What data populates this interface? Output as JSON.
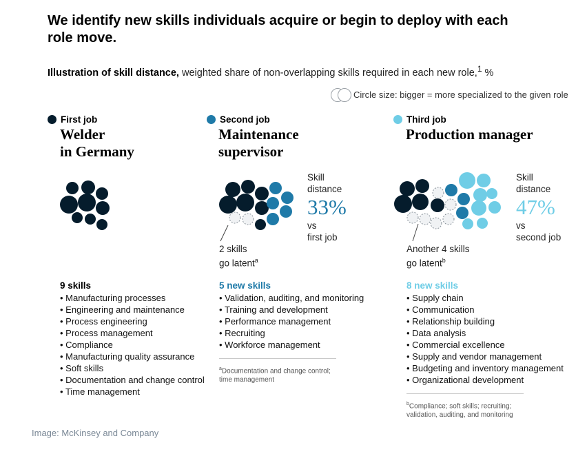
{
  "title": "We identify new skills individuals acquire or begin to deploy with each role move.",
  "subtitle": {
    "bold": "Illustration of skill distance,",
    "rest": " weighted share of non-overlapping skills required in each new role,",
    "sup": "1",
    "unit": " %"
  },
  "legend_note": "Circle size: bigger = more specialized to the given role",
  "colors": {
    "first": "#051c2c",
    "second": "#1f7aa8",
    "third": "#6fcde6",
    "latent": "#f0f2f4"
  },
  "chart_data": {
    "type": "bubble-cluster",
    "metric": "skill distance",
    "jobs": [
      {
        "order_label": "First job",
        "role": [
          "Welder",
          "in Germany"
        ],
        "skill_count_label": "9 skills",
        "skills": [
          "Manufacturing processes",
          "Engineering and maintenance",
          "Process engineering",
          "Process management",
          "Compliance",
          "Manufacturing quality assurance",
          "Soft skills",
          "Documentation and change control",
          "Time management"
        ],
        "skill_distance": null,
        "composition": {
          "first_job": 9,
          "new": 0,
          "latent": 0
        }
      },
      {
        "order_label": "Second job",
        "role": [
          "Maintenance",
          "supervisor"
        ],
        "skill_distance": 33,
        "distance_label": [
          "Skill",
          "distance"
        ],
        "distance_value": "33%",
        "vs_label": [
          "vs",
          "first job"
        ],
        "latent_label": [
          "2 skills",
          "go latent"
        ],
        "latent_sup": "a",
        "skill_count_label": "5 new skills",
        "skills": [
          "Validation, auditing, and monitoring",
          "Training and development",
          "Performance management",
          "Recruiting",
          "Workforce management"
        ],
        "footnote_sup": "a",
        "footnote": [
          "Documentation and change control;",
          "time management"
        ],
        "composition": {
          "first_job": 7,
          "new": 5,
          "latent": 2
        }
      },
      {
        "order_label": "Third job",
        "role": [
          "Production manager"
        ],
        "skill_distance": 47,
        "distance_label": [
          "Skill",
          "distance"
        ],
        "distance_value": "47%",
        "vs_label": [
          "vs",
          "second job"
        ],
        "latent_label": [
          "Another 4 skills",
          "go latent"
        ],
        "latent_sup": "b",
        "skill_count_label": "8 new skills",
        "skills": [
          "Supply chain",
          "Communication",
          "Relationship building",
          "Data analysis",
          "Commercial excellence",
          "Supply and vendor management",
          "Budgeting and inventory management",
          "Organizational development"
        ],
        "footnote_sup": "b",
        "footnote": [
          "Compliance; soft skills; recruiting;",
          "validation, auditing, and monitoring"
        ],
        "composition": {
          "first_job": 5,
          "second_job": 3,
          "new": 8,
          "latent": 6
        }
      }
    ]
  },
  "credit": "Image: McKinsey and Company"
}
